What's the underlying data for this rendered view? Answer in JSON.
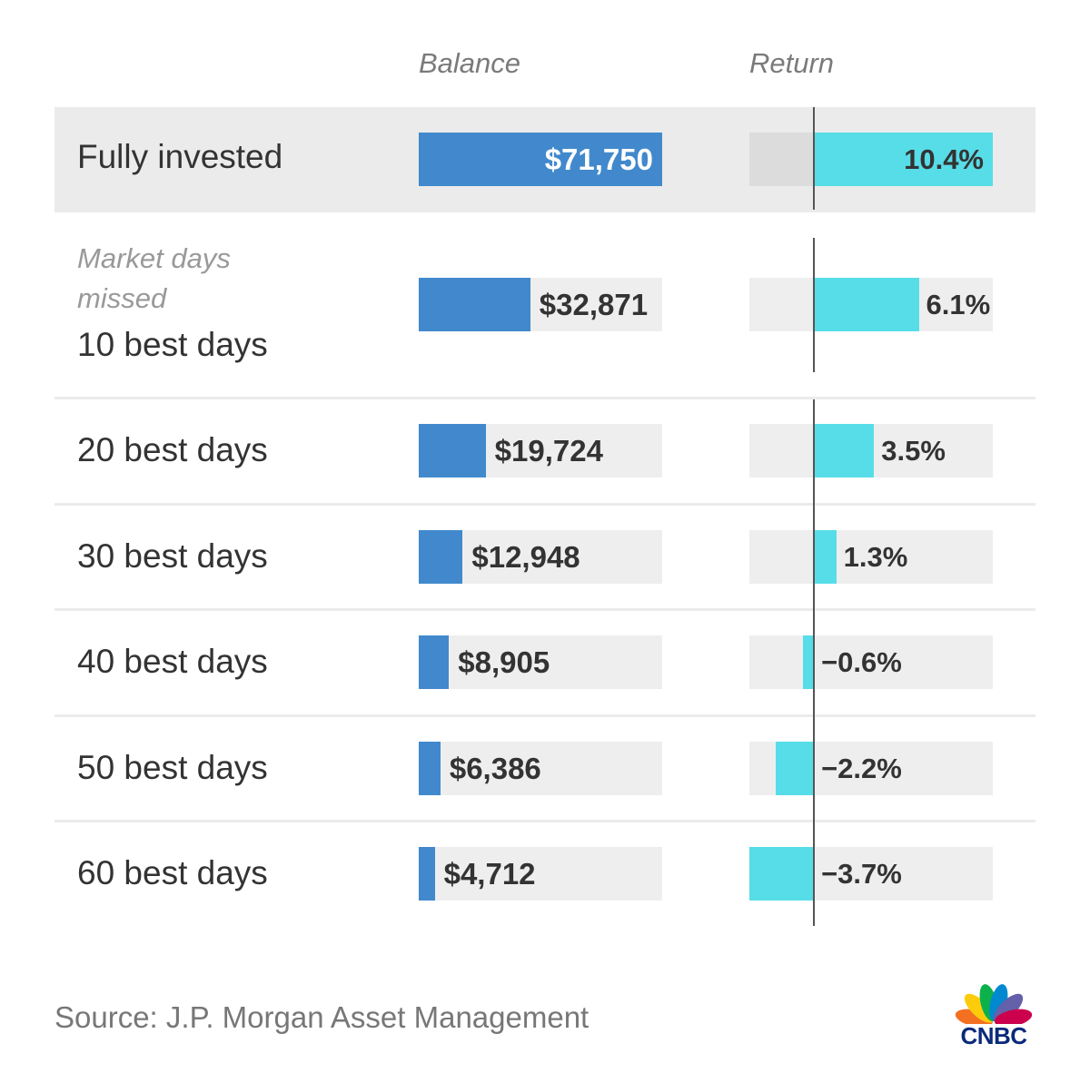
{
  "headers": {
    "balance": "Balance",
    "return": "Return"
  },
  "sub_label": [
    "Market days",
    "missed"
  ],
  "source": "Source: J.P. Morgan Asset Management",
  "logo": {
    "text": "CNBC",
    "petal_colors": [
      "#fccc0a",
      "#f37021",
      "#cc004c",
      "#6460aa",
      "#0089d0",
      "#0db14b"
    ]
  },
  "colors": {
    "balance_bar": "#4189cc",
    "return_bar": "#56dde8",
    "track": "#eeeeee",
    "highlight_row": "#ebebeb"
  },
  "chart_data": {
    "type": "bar",
    "title": "",
    "categories": [
      "Fully invested",
      "10 best days",
      "20 best days",
      "30 best days",
      "40 best days",
      "50 best days",
      "60 best days"
    ],
    "series": [
      {
        "name": "Balance",
        "values": [
          71750,
          32871,
          19724,
          12948,
          8905,
          6386,
          4712
        ],
        "labels": [
          "$71,750",
          "$32,871",
          "$19,724",
          "$12,948",
          "$8,905",
          "$6,386",
          "$4,712"
        ]
      },
      {
        "name": "Return",
        "values": [
          10.4,
          6.1,
          3.5,
          1.3,
          -0.6,
          -2.2,
          -3.7
        ],
        "labels": [
          "10.4%",
          "6.1%",
          "3.5%",
          "1.3%",
          "−0.6%",
          "−2.2%",
          "−3.7%"
        ]
      }
    ],
    "balance_range": [
      0,
      71750
    ],
    "return_range": [
      -3.7,
      10.4
    ],
    "grid": false
  }
}
